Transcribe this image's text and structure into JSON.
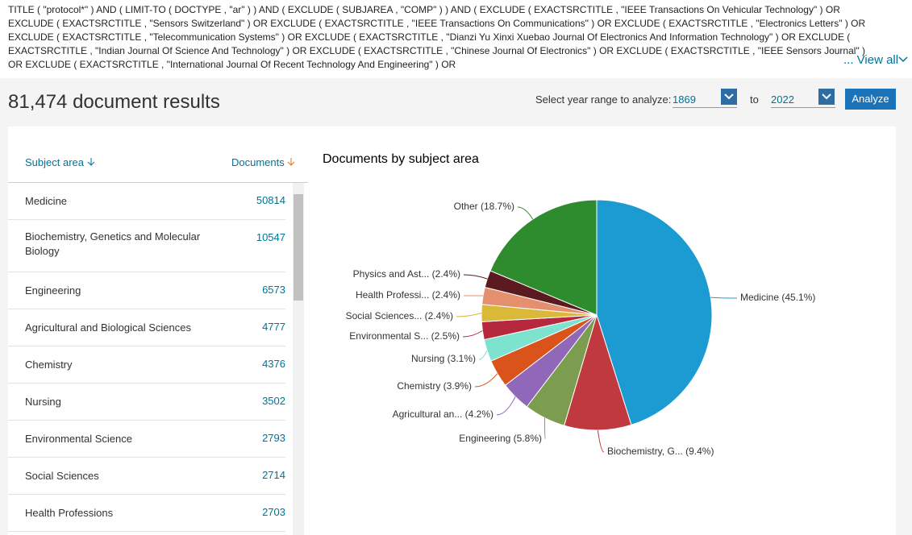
{
  "query": {
    "text": "TITLE ( \"protocol*\" ) AND ( LIMIT-TO ( DOCTYPE , \"ar\" ) ) AND ( EXCLUDE ( SUBJAREA , \"COMP\" ) ) AND ( EXCLUDE ( EXACTSRCTITLE , \"IEEE Transactions On Vehicular Technology\" ) OR EXCLUDE ( EXACTSRCTITLE , \"Sensors Switzerland\" ) OR EXCLUDE ( EXACTSRCTITLE , \"IEEE Transactions On Communications\" ) OR EXCLUDE ( EXACTSRCTITLE , \"Electronics Letters\" ) OR EXCLUDE ( EXACTSRCTITLE , \"Telecommunication Systems\" ) OR EXCLUDE ( EXACTSRCTITLE , \"Dianzi Yu Xinxi Xuebao Journal Of Electronics And Information Technology\" ) OR EXCLUDE ( EXACTSRCTITLE , \"Indian Journal Of Science And Technology\" ) OR EXCLUDE ( EXACTSRCTITLE , \"Chinese Journal Of Electronics\" ) OR EXCLUDE ( EXACTSRCTITLE , \"IEEE Sensors Journal\" ) OR EXCLUDE ( EXACTSRCTITLE , \"International Journal Of Recent Technology And Engineering\" ) OR",
    "view_all": "... View all"
  },
  "header": {
    "results": "81,474 document results",
    "year_label": "Select year range to analyze:",
    "from": "1869",
    "to_label": "to",
    "to": "2022",
    "analyze": "Analyze"
  },
  "table": {
    "headers": [
      "Subject area",
      "Documents"
    ],
    "rows": [
      [
        "Medicine",
        50814
      ],
      [
        "Biochemistry, Genetics and Molecular Biology",
        10547
      ],
      [
        "Engineering",
        6573
      ],
      [
        "Agricultural and Biological Sciences",
        4777
      ],
      [
        "Chemistry",
        4376
      ],
      [
        "Nursing",
        3502
      ],
      [
        "Environmental Science",
        2793
      ],
      [
        "Social Sciences",
        2714
      ],
      [
        "Health Professions",
        2703
      ]
    ]
  },
  "chart_data": {
    "type": "pie",
    "title": "Documents by subject area",
    "categories": [
      "Medicine (45.1%)",
      "Biochemistry, G... (9.4%)",
      "Engineering (5.8%)",
      "Agricultural an... (4.2%)",
      "Chemistry (3.9%)",
      "Nursing (3.1%)",
      "Environmental S... (2.5%)",
      "Social Sciences... (2.4%)",
      "Health Professi... (2.4%)",
      "Physics and Ast... (2.4%)",
      "Other (18.7%)"
    ],
    "values": [
      45.1,
      9.4,
      5.8,
      4.2,
      3.9,
      3.1,
      2.5,
      2.4,
      2.4,
      2.4,
      18.7
    ],
    "colors": [
      "#1b9bd1",
      "#c0393f",
      "#7c9c4f",
      "#9168b9",
      "#d9531a",
      "#7de3cf",
      "#b5283e",
      "#d9b83a",
      "#e48f6e",
      "#5a1a1f",
      "#2e8b2e"
    ]
  }
}
